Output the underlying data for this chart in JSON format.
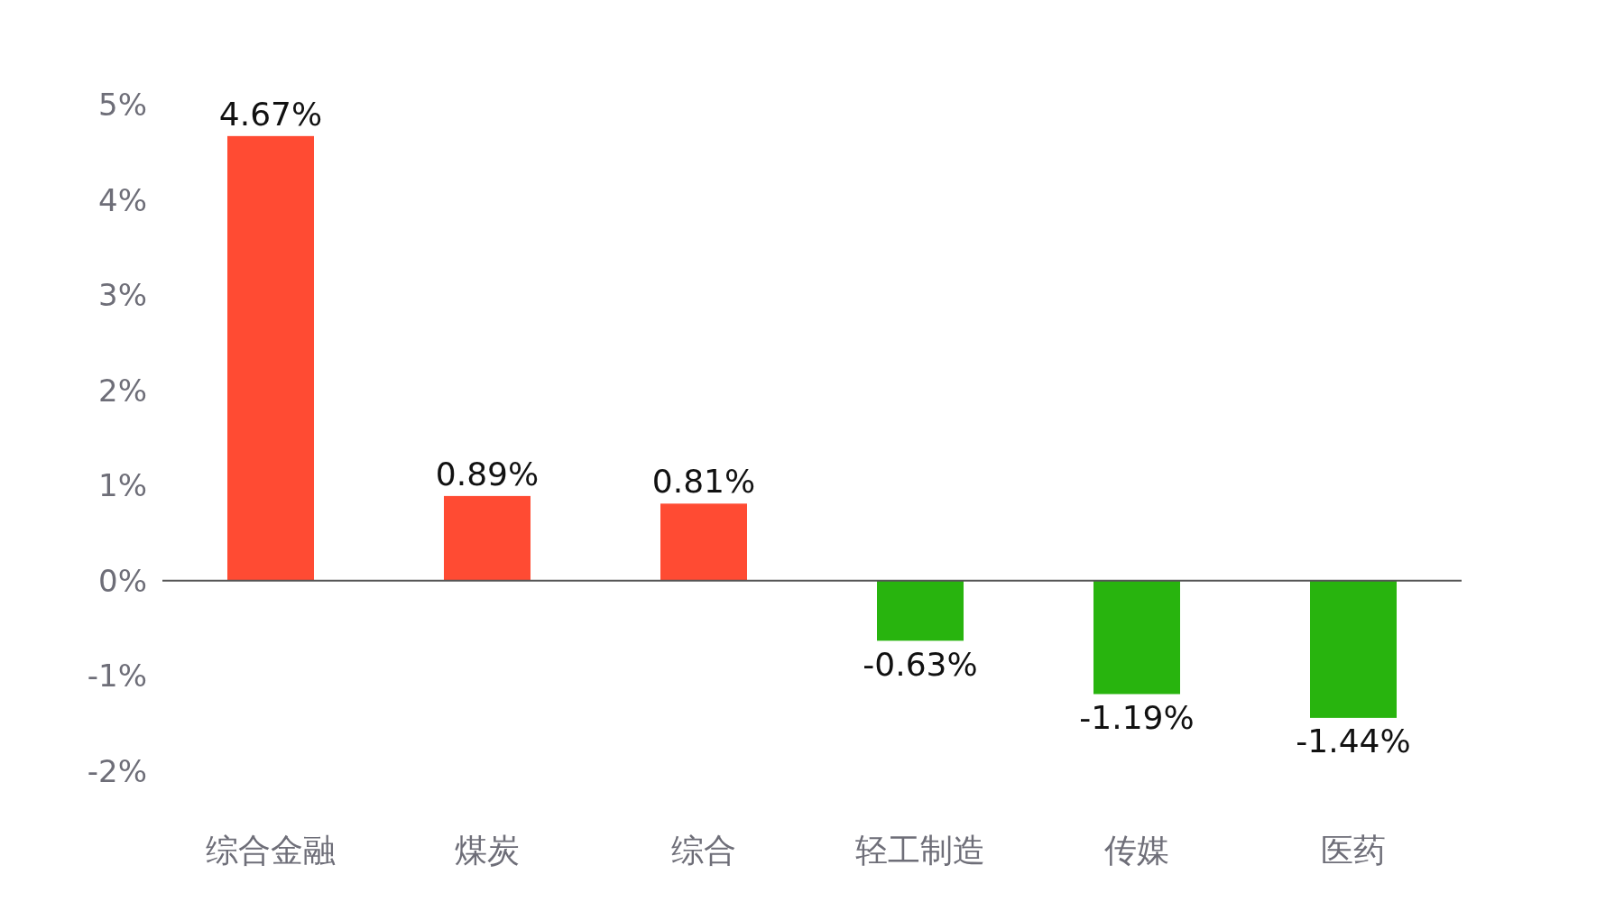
{
  "chart_data": {
    "type": "bar",
    "categories": [
      "综合金融",
      "煤炭",
      "综合",
      "轻工制造",
      "传媒",
      "医药"
    ],
    "values": [
      4.67,
      0.89,
      0.81,
      -0.63,
      -1.19,
      -1.44
    ],
    "colors": [
      "#ff4b33",
      "#ff4b33",
      "#ff4b33",
      "#28b40e",
      "#28b40e",
      "#28b40e"
    ],
    "value_labels": [
      "4.67%",
      "0.89%",
      "0.81%",
      "-0.63%",
      "-1.19%",
      "-1.44%"
    ],
    "ylim": [
      -2,
      5
    ],
    "yticks": [
      {
        "value": -2,
        "label": "-2%"
      },
      {
        "value": -1,
        "label": "-1%"
      },
      {
        "value": 0,
        "label": "0%"
      },
      {
        "value": 1,
        "label": "1%"
      },
      {
        "value": 2,
        "label": "2%"
      },
      {
        "value": 3,
        "label": "3%"
      },
      {
        "value": 4,
        "label": "4%"
      },
      {
        "value": 5,
        "label": "5%"
      }
    ]
  }
}
